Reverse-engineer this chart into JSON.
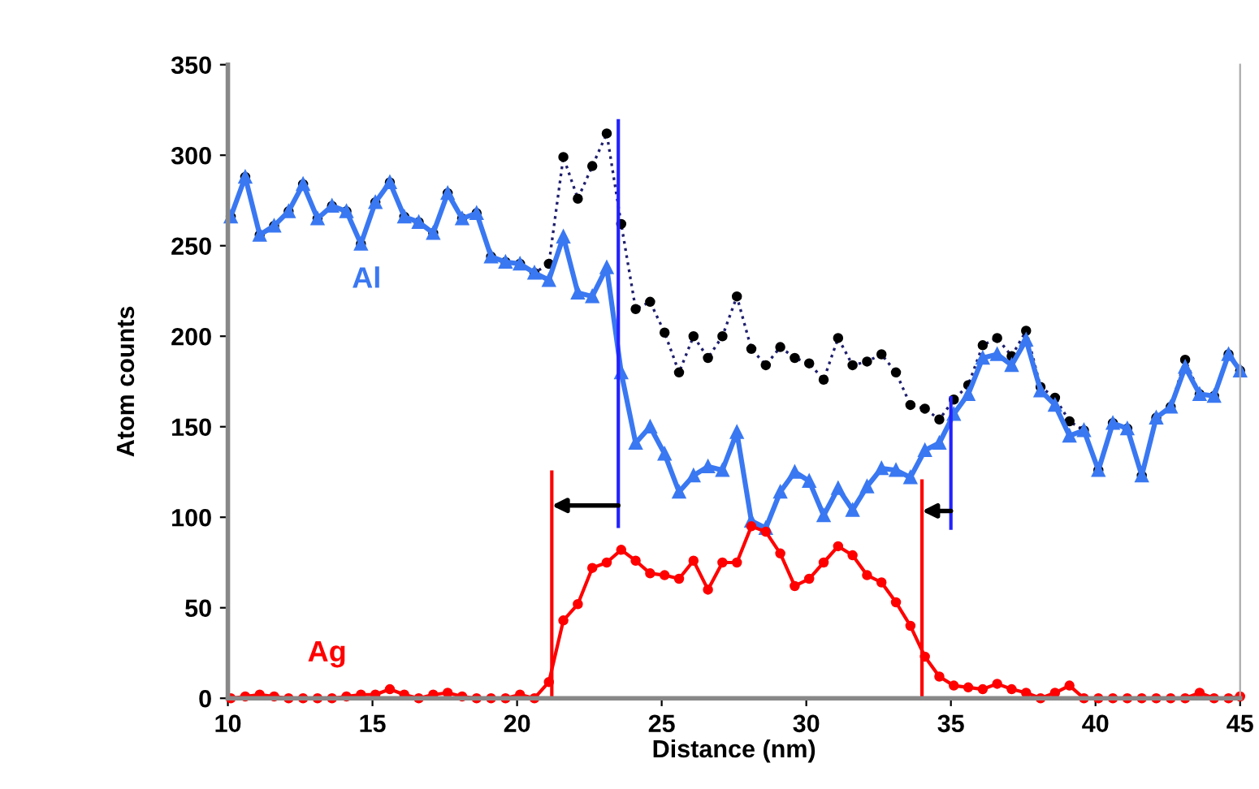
{
  "chart_data": {
    "type": "line",
    "xlabel": "Distance (nm)",
    "ylabel": "Atom counts",
    "xlim": [
      10,
      45
    ],
    "ylim": [
      0,
      350
    ],
    "xticks": [
      10,
      15,
      20,
      25,
      30,
      35,
      40,
      45
    ],
    "yticks": [
      0,
      50,
      100,
      150,
      200,
      250,
      300,
      350
    ],
    "grid": false,
    "legend": false,
    "x": [
      10.1,
      10.6,
      11.1,
      11.6,
      12.1,
      12.6,
      13.1,
      13.6,
      14.1,
      14.6,
      15.1,
      15.6,
      16.1,
      16.6,
      17.1,
      17.6,
      18.1,
      18.6,
      19.1,
      19.6,
      20.1,
      20.6,
      21.1,
      21.6,
      22.1,
      22.6,
      23.1,
      23.6,
      24.1,
      24.6,
      25.1,
      25.6,
      26.1,
      26.6,
      27.1,
      27.6,
      28.1,
      28.6,
      29.1,
      29.6,
      30.1,
      30.6,
      31.1,
      31.6,
      32.1,
      32.6,
      33.1,
      33.6,
      34.1,
      34.6,
      35.1,
      35.6,
      36.1,
      36.6,
      37.1,
      37.6,
      38.1,
      38.6,
      39.1,
      39.6,
      40.1,
      40.6,
      41.1,
      41.6,
      42.1,
      42.6,
      43.1,
      43.6,
      44.1,
      44.6,
      45.0
    ],
    "series": [
      {
        "color": "#1f1f6e",
        "marker": "circle",
        "line_style": "dotted",
        "values": [
          266,
          288,
          256,
          261,
          269,
          284,
          265,
          272,
          269,
          251,
          274,
          285,
          266,
          263,
          257,
          279,
          265,
          268,
          244,
          241,
          240,
          235,
          240,
          299,
          276,
          294,
          312,
          262,
          215,
          219,
          202,
          180,
          200,
          188,
          200,
          222,
          193,
          184,
          194,
          188,
          185,
          176,
          199,
          184,
          186,
          190,
          180,
          162,
          160,
          154,
          165,
          173,
          195,
          199,
          189,
          203,
          172,
          166,
          153,
          148,
          126,
          152,
          149,
          123,
          155,
          161,
          187,
          168,
          167,
          190,
          181
        ]
      },
      {
        "name": "Al",
        "color": "#3a78f2",
        "marker": "triangle",
        "line_style": "solid",
        "values": [
          266,
          288,
          256,
          261,
          269,
          284,
          265,
          272,
          269,
          251,
          274,
          285,
          266,
          263,
          257,
          279,
          265,
          268,
          244,
          241,
          240,
          235,
          231,
          255,
          224,
          222,
          238,
          180,
          141,
          150,
          135,
          114,
          123,
          128,
          126,
          147,
          98,
          94,
          114,
          125,
          120,
          101,
          116,
          104,
          117,
          127,
          126,
          122,
          137,
          141,
          157,
          168,
          188,
          190,
          184,
          198,
          170,
          162,
          145,
          148,
          126,
          152,
          149,
          123,
          155,
          161,
          183,
          168,
          167,
          190,
          181
        ]
      },
      {
        "name": "Ag",
        "color": "#ff0000",
        "marker": "circle",
        "line_style": "solid",
        "values": [
          0,
          1,
          2,
          1,
          0,
          0,
          0,
          0,
          1,
          2,
          2,
          5,
          2,
          0,
          2,
          3,
          1,
          0,
          0,
          0,
          2,
          0,
          9,
          43,
          52,
          72,
          75,
          82,
          76,
          69,
          68,
          66,
          76,
          60,
          75,
          75,
          95,
          92,
          80,
          62,
          66,
          75,
          84,
          79,
          68,
          64,
          53,
          40,
          23,
          12,
          7,
          6,
          5,
          8,
          5,
          3,
          0,
          3,
          7,
          0,
          0,
          0,
          0,
          0,
          0,
          0,
          0,
          3,
          0,
          0,
          1
        ]
      },
      {
        "color": "#ff0000",
        "marker": "none",
        "line_style": "solid",
        "x": [
          21.2,
          21.2
        ],
        "values": [
          0,
          125
        ]
      },
      {
        "color": "#2222ff",
        "marker": "none",
        "line_style": "solid",
        "x": [
          23.5,
          23.5
        ],
        "values": [
          95,
          319
        ]
      },
      {
        "color": "#ff0000",
        "marker": "none",
        "line_style": "solid",
        "x": [
          34.0,
          34.0
        ],
        "values": [
          0,
          120
        ]
      },
      {
        "color": "#2222ff",
        "marker": "none",
        "line_style": "solid",
        "x": [
          35.0,
          35.0
        ],
        "values": [
          94,
          166
        ]
      }
    ]
  }
}
